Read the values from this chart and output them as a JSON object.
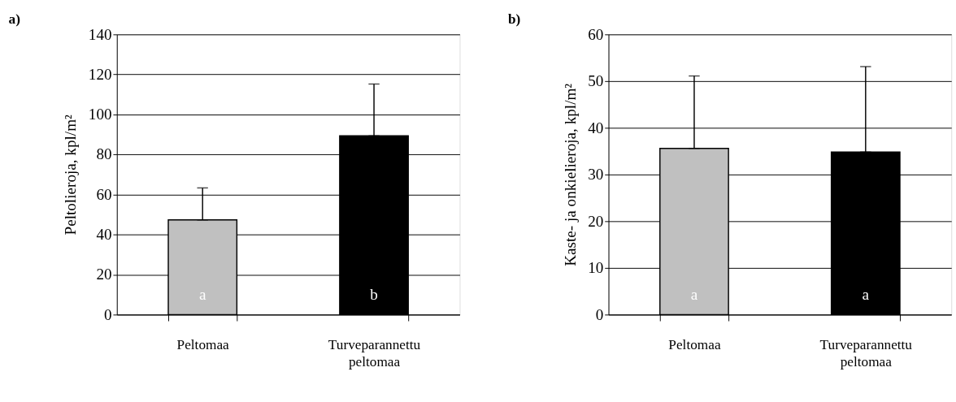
{
  "chart_data": [
    {
      "type": "bar",
      "title": "a)",
      "ylabel": "Peltolieroja, kpl/m²",
      "categories": [
        "Peltomaa",
        "Turveparannettu peltomaa"
      ],
      "values": [
        47.3,
        89.3
      ],
      "colors": [
        "#c0c0c0",
        "#000000"
      ],
      "errors": [
        [
          47.3,
          63.3
        ],
        [
          89.3,
          115.2
        ]
      ],
      "ylim": [
        0,
        140
      ],
      "yticks": [
        0,
        20,
        40,
        60,
        80,
        100,
        120,
        140
      ],
      "grid": "y",
      "annotations": [
        "a",
        "b"
      ]
    },
    {
      "type": "bar",
      "title": "b)",
      "ylabel": "Kaste- ja onkielieroja, kpl/m²",
      "categories": [
        "Peltomaa",
        "Turveparannettu peltomaa"
      ],
      "values": [
        35.6,
        34.8
      ],
      "colors": [
        "#c0c0c0",
        "#000000"
      ],
      "errors": [
        [
          35.6,
          51.1
        ],
        [
          34.8,
          53.1
        ]
      ],
      "ylim": [
        0,
        60
      ],
      "yticks": [
        0,
        10,
        20,
        30,
        40,
        50,
        60
      ],
      "grid": "y",
      "annotations": [
        "a",
        "a"
      ]
    }
  ]
}
